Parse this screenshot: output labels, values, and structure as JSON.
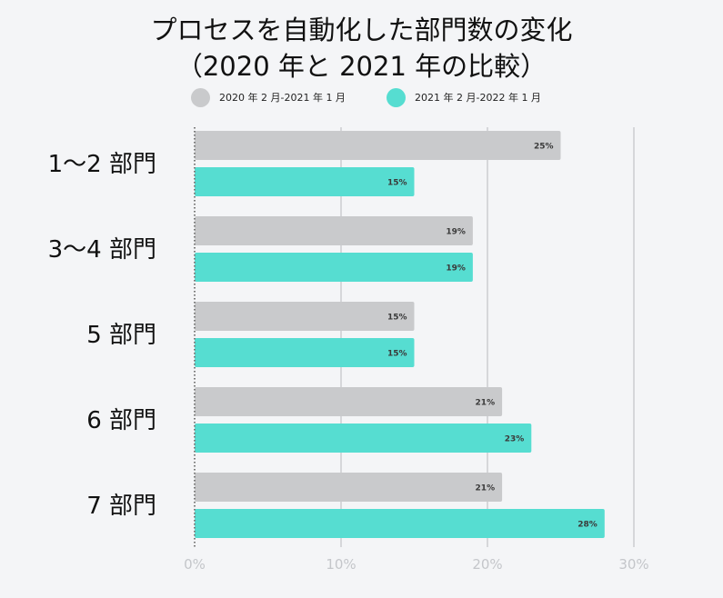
{
  "title_lines": [
    "プロセスを自動化した部門数の変化",
    "（2020 年と 2021 年の比較）"
  ],
  "colors": {
    "series_2020": "#c9cacc",
    "series_2021": "#56ddd1",
    "grid": "#d6d7da",
    "axis": "#7a7a7a",
    "background": "#f4f5f7"
  },
  "chart_data": {
    "type": "bar",
    "orientation": "horizontal",
    "title": "プロセスを自動化した部門数の変化（2020 年と 2021 年の比較）",
    "categories": [
      "1～2 部門",
      "3～4 部門",
      "5 部門",
      "6 部門",
      "7 部門"
    ],
    "series": [
      {
        "name": "2020 年 2 月-2021 年 1 月",
        "values": [
          25,
          19,
          15,
          21,
          21
        ],
        "labels": [
          "25%",
          "19%",
          "15%",
          "21%",
          "21%"
        ]
      },
      {
        "name": "2021 年 2 月-2022 年 1 月",
        "values": [
          15,
          19,
          15,
          23,
          28
        ],
        "labels": [
          "15%",
          "19%",
          "15%",
          "23%",
          "28%"
        ]
      }
    ],
    "xlim": [
      0,
      30
    ],
    "xticks": [
      0,
      10,
      20,
      30
    ],
    "xtick_labels": [
      "0%",
      "10%",
      "20%",
      "30%"
    ],
    "grid": true,
    "legend_position": "top"
  }
}
